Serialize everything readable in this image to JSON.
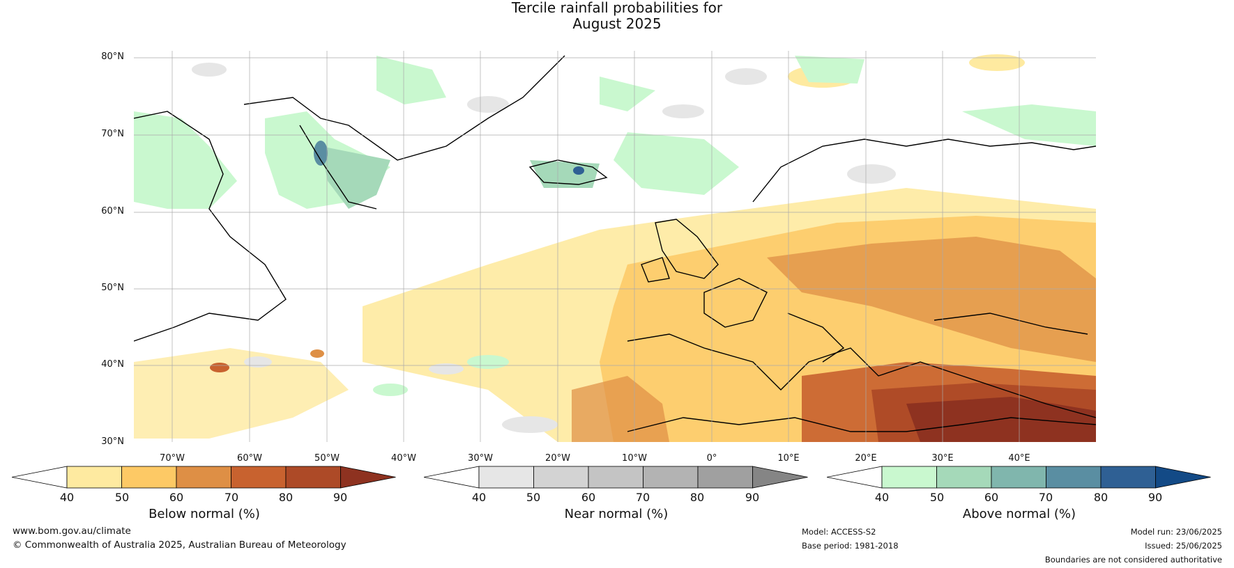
{
  "title": {
    "line1": "Tercile rainfall probabilities for",
    "line2": "August 2025"
  },
  "map": {
    "lat_labels": [
      "80°N",
      "70°N",
      "60°N",
      "50°N",
      "40°N",
      "30°N"
    ],
    "lon_labels": [
      "70°W",
      "60°W",
      "50°W",
      "40°W",
      "30°W",
      "20°W",
      "10°W",
      "0°",
      "10°E",
      "20°E",
      "30°E",
      "40°E"
    ],
    "extent": {
      "lon_min": -75,
      "lon_max": 50,
      "lat_min": 30,
      "lat_max": 81
    },
    "gridlines": true,
    "regions": [
      "Greenland",
      "Iceland",
      "Scandinavia",
      "British Isles",
      "Western Europe",
      "Mediterranean",
      "Eastern Europe",
      "North Africa"
    ]
  },
  "colorbars": [
    {
      "id": "below",
      "title": "Below normal (%)",
      "ticks": [
        "40",
        "50",
        "60",
        "70",
        "80",
        "90"
      ],
      "colors": [
        "#ffffff",
        "#feeaa0",
        "#fdc965",
        "#de8f45",
        "#c8622f",
        "#ad4a27",
        "#8e3220"
      ]
    },
    {
      "id": "near",
      "title": "Near normal (%)",
      "ticks": [
        "40",
        "50",
        "60",
        "70",
        "80",
        "90"
      ],
      "colors": [
        "#ffffff",
        "#e6e6e6",
        "#d3d3d3",
        "#c4c4c4",
        "#b3b3b3",
        "#a0a0a0",
        "#858585"
      ]
    },
    {
      "id": "above",
      "title": "Above normal (%)",
      "ticks": [
        "40",
        "50",
        "60",
        "70",
        "80",
        "90"
      ],
      "colors": [
        "#ffffff",
        "#c9f8cf",
        "#a5d9b9",
        "#80b6ad",
        "#5a8ea2",
        "#2f6094",
        "#134a86"
      ]
    }
  ],
  "footer": {
    "website": "www.bom.gov.au/climate",
    "copyright": "© Commonwealth of Australia 2025, Australian Bureau of Meteorology",
    "model": "Model: ACCESS-S2",
    "base_period": "Base period: 1981-2018",
    "model_run": "Model run: 23/06/2025",
    "issued": "Issued: 25/06/2025",
    "disclaimer": "Boundaries are not considered authoritative"
  }
}
